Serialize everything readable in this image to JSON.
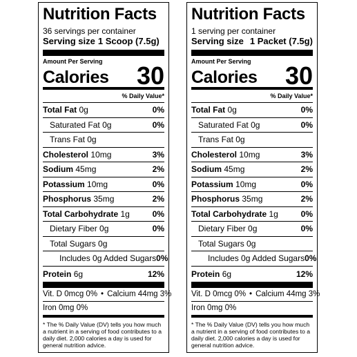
{
  "labels": [
    {
      "title": "Nutrition Facts",
      "servings_per_container": "36 servings per container",
      "serving_size_label": "Serving size",
      "serving_size_value": "1 Scoop (7.5g)",
      "amount_per_serving": "Amount Per Serving",
      "calories_label": "Calories",
      "calories_value": "30",
      "dv_header": "% Daily Value*",
      "nutrients": {
        "total_fat": {
          "name": "Total Fat",
          "amount": "0g",
          "dv": "0%"
        },
        "saturated_fat": {
          "name": "Saturated Fat",
          "amount": "0g",
          "dv": "0%"
        },
        "trans_fat": {
          "name": "Trans Fat",
          "amount": "0g"
        },
        "cholesterol": {
          "name": "Cholesterol",
          "amount": "10mg",
          "dv": "3%"
        },
        "sodium": {
          "name": "Sodium",
          "amount": "45mg",
          "dv": "2%"
        },
        "potassium": {
          "name": "Potassium",
          "amount": "10mg",
          "dv": "0%"
        },
        "phosphorus": {
          "name": "Phosphorus",
          "amount": "35mg",
          "dv": "2%"
        },
        "total_carb": {
          "name": "Total Carbohydrate",
          "amount": "1g",
          "dv": "0%"
        },
        "dietary_fiber": {
          "name": "Dietary Fiber",
          "amount": "0g",
          "dv": "0%"
        },
        "total_sugars": {
          "name": "Total Sugars",
          "amount": "0g"
        },
        "added_sugars": {
          "text": "Includes 0g Added Sugars",
          "dv": "0%"
        },
        "protein": {
          "name": "Protein",
          "amount": "6g",
          "dv": "12%"
        }
      },
      "vitamin_d": "Vit. D 0mcg 0%",
      "calcium": "Calcium 44mg 3%",
      "iron": "Iron 0mg 0%",
      "footnote": "* The % Daily Value (DV) tells you how much a nutrient in a serving of food contributes to a daily diet. 2,000 calories a day is used for general nutrition advice."
    },
    {
      "title": "Nutrition Facts",
      "servings_per_container": "1 serving per container",
      "serving_size_label": "Serving size",
      "serving_size_value": "1 Packet (7.5g)",
      "amount_per_serving": "Amount Per Serving",
      "calories_label": "Calories",
      "calories_value": "30",
      "dv_header": "% Daily Value*",
      "nutrients": {
        "total_fat": {
          "name": "Total Fat",
          "amount": "0g",
          "dv": "0%"
        },
        "saturated_fat": {
          "name": "Saturated Fat",
          "amount": "0g",
          "dv": "0%"
        },
        "trans_fat": {
          "name": "Trans Fat",
          "amount": "0g"
        },
        "cholesterol": {
          "name": "Cholesterol",
          "amount": "10mg",
          "dv": "3%"
        },
        "sodium": {
          "name": "Sodium",
          "amount": "45mg",
          "dv": "2%"
        },
        "potassium": {
          "name": "Potassium",
          "amount": "10mg",
          "dv": "0%"
        },
        "phosphorus": {
          "name": "Phosphorus",
          "amount": "35mg",
          "dv": "2%"
        },
        "total_carb": {
          "name": "Total Carbohydrate",
          "amount": "1g",
          "dv": "0%"
        },
        "dietary_fiber": {
          "name": "Dietary Fiber",
          "amount": "0g",
          "dv": "0%"
        },
        "total_sugars": {
          "name": "Total Sugars",
          "amount": "0g"
        },
        "added_sugars": {
          "text": "Includes 0g Added Sugars",
          "dv": "0%"
        },
        "protein": {
          "name": "Protein",
          "amount": "6g",
          "dv": "12%"
        }
      },
      "vitamin_d": "Vit. D 0mcg 0%",
      "calcium": "Calcium 44mg 3%",
      "iron": "Iron 0mg 0%",
      "footnote": "* The % Daily Value (DV) tells you how much a nutrient in a serving of food contributes to a daily diet. 2,000 calories a day is used for general nutrition advice."
    }
  ]
}
